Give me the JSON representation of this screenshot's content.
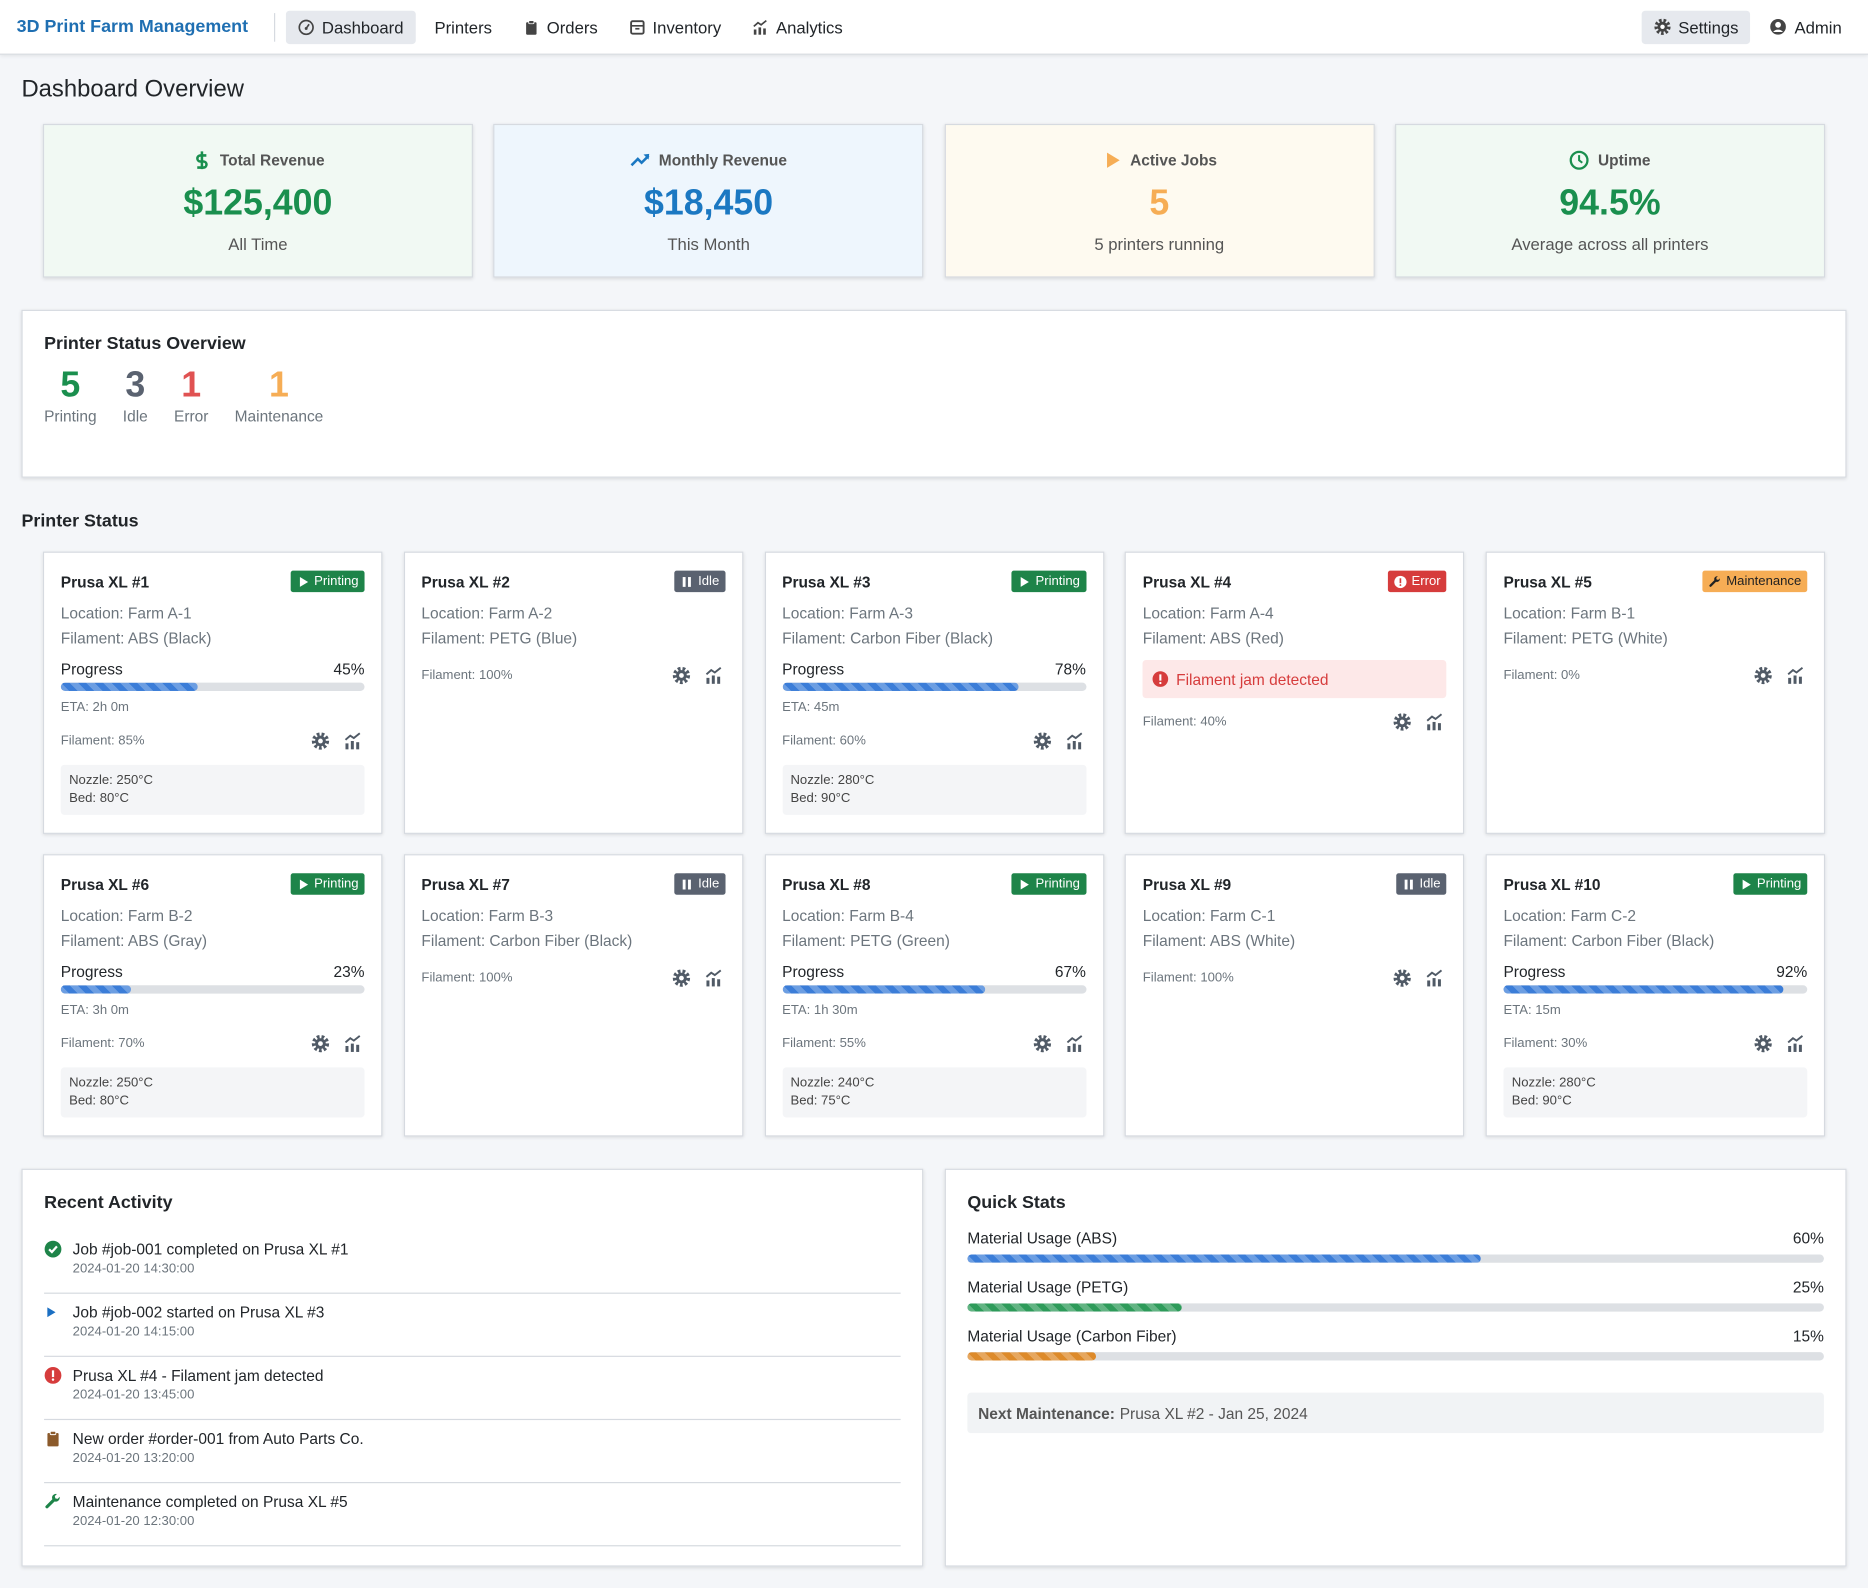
{
  "nav": {
    "brand": "3D Print Farm Management",
    "items": [
      "Dashboard",
      "Printers",
      "Orders",
      "Inventory",
      "Analytics"
    ],
    "settings": "Settings",
    "user": "Admin"
  },
  "page_title": "Dashboard Overview",
  "stats": [
    {
      "label": "Total Revenue",
      "value": "$125,400",
      "note": "All Time",
      "color": "#1a8f4e",
      "bg": "#f1f9f3"
    },
    {
      "label": "Monthly Revenue",
      "value": "$18,450",
      "note": "This Month",
      "color": "#1b78c2",
      "bg": "#eef6fd"
    },
    {
      "label": "Active Jobs",
      "value": "5",
      "note": "5 printers running",
      "color": "#f6ad55",
      "bg": "#fefaf0"
    },
    {
      "label": "Uptime",
      "value": "94.5%",
      "note": "Average across all printers",
      "color": "#1a8f4e",
      "bg": "#f1f9f3"
    }
  ],
  "status_overview": {
    "title": "Printer Status Overview",
    "counts": [
      {
        "value": "5",
        "label": "Printing",
        "color": "#1a8f4e"
      },
      {
        "value": "3",
        "label": "Idle",
        "color": "#5a6270"
      },
      {
        "value": "1",
        "label": "Error",
        "color": "#e05252"
      },
      {
        "value": "1",
        "label": "Maintenance",
        "color": "#f6ad55"
      }
    ]
  },
  "printers_title": "Printer Status",
  "progress_label": "Progress",
  "printers": [
    {
      "name": "Prusa XL #1",
      "status": "Printing",
      "location": "Location: Farm A-1",
      "filament": "Filament: ABS (Black)",
      "progress": "45%",
      "eta": "ETA: 2h 0m",
      "filament_level": "Filament: 85%",
      "nozzle": "Nozzle: 250°C",
      "bed": "Bed: 80°C"
    },
    {
      "name": "Prusa XL #2",
      "status": "Idle",
      "location": "Location: Farm A-2",
      "filament": "Filament: PETG (Blue)",
      "filament_level": "Filament: 100%"
    },
    {
      "name": "Prusa XL #3",
      "status": "Printing",
      "location": "Location: Farm A-3",
      "filament": "Filament: Carbon Fiber (Black)",
      "progress": "78%",
      "eta": "ETA: 45m",
      "filament_level": "Filament: 60%",
      "nozzle": "Nozzle: 280°C",
      "bed": "Bed: 90°C"
    },
    {
      "name": "Prusa XL #4",
      "status": "Error",
      "location": "Location: Farm A-4",
      "filament": "Filament: ABS (Red)",
      "error": "Filament jam detected",
      "filament_level": "Filament: 40%"
    },
    {
      "name": "Prusa XL #5",
      "status": "Maintenance",
      "location": "Location: Farm B-1",
      "filament": "Filament: PETG (White)",
      "filament_level": "Filament: 0%"
    },
    {
      "name": "Prusa XL #6",
      "status": "Printing",
      "location": "Location: Farm B-2",
      "filament": "Filament: ABS (Gray)",
      "progress": "23%",
      "eta": "ETA: 3h 0m",
      "filament_level": "Filament: 70%",
      "nozzle": "Nozzle: 250°C",
      "bed": "Bed: 80°C"
    },
    {
      "name": "Prusa XL #7",
      "status": "Idle",
      "location": "Location: Farm B-3",
      "filament": "Filament: Carbon Fiber (Black)",
      "filament_level": "Filament: 100%"
    },
    {
      "name": "Prusa XL #8",
      "status": "Printing",
      "location": "Location: Farm B-4",
      "filament": "Filament: PETG (Green)",
      "progress": "67%",
      "eta": "ETA: 1h 30m",
      "filament_level": "Filament: 55%",
      "nozzle": "Nozzle: 240°C",
      "bed": "Bed: 75°C"
    },
    {
      "name": "Prusa XL #9",
      "status": "Idle",
      "location": "Location: Farm C-1",
      "filament": "Filament: ABS (White)",
      "filament_level": "Filament: 100%"
    },
    {
      "name": "Prusa XL #10",
      "status": "Printing",
      "location": "Location: Farm C-2",
      "filament": "Filament: Carbon Fiber (Black)",
      "progress": "92%",
      "eta": "ETA: 15m",
      "filament_level": "Filament: 30%",
      "nozzle": "Nozzle: 280°C",
      "bed": "Bed: 90°C"
    }
  ],
  "activity": {
    "title": "Recent Activity",
    "items": [
      {
        "text": "Job #job-001 completed on Prusa XL #1",
        "time": "2024-01-20 14:30:00"
      },
      {
        "text": "Job #job-002 started on Prusa XL #3",
        "time": "2024-01-20 14:15:00"
      },
      {
        "text": "Prusa XL #4 - Filament jam detected",
        "time": "2024-01-20 13:45:00"
      },
      {
        "text": "New order #order-001 from Auto Parts Co.",
        "time": "2024-01-20 13:20:00"
      },
      {
        "text": "Maintenance completed on Prusa XL #5",
        "time": "2024-01-20 12:30:00"
      }
    ]
  },
  "quick_stats": {
    "title": "Quick Stats",
    "items": [
      {
        "label": "Material Usage (ABS)",
        "value": "60%",
        "color": "#3b7dd8"
      },
      {
        "label": "Material Usage (PETG)",
        "value": "25%",
        "color": "#2e9b5a"
      },
      {
        "label": "Material Usage (Carbon Fiber)",
        "value": "15%",
        "color": "#dd8a2a"
      }
    ],
    "next_label": "Next Maintenance:",
    "next_value": "Prusa XL #2 - Jan 25, 2024"
  }
}
